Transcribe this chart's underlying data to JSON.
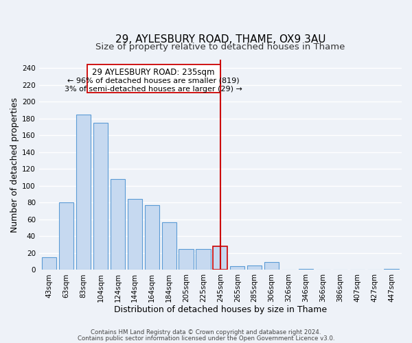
{
  "title": "29, AYLESBURY ROAD, THAME, OX9 3AU",
  "subtitle": "Size of property relative to detached houses in Thame",
  "xlabel": "Distribution of detached houses by size in Thame",
  "ylabel": "Number of detached properties",
  "bar_labels": [
    "43sqm",
    "63sqm",
    "83sqm",
    "104sqm",
    "124sqm",
    "144sqm",
    "164sqm",
    "184sqm",
    "205sqm",
    "225sqm",
    "245sqm",
    "265sqm",
    "285sqm",
    "306sqm",
    "326sqm",
    "346sqm",
    "366sqm",
    "386sqm",
    "407sqm",
    "427sqm",
    "447sqm"
  ],
  "bar_heights": [
    15,
    80,
    185,
    175,
    108,
    84,
    77,
    57,
    25,
    25,
    28,
    4,
    5,
    9,
    0,
    1,
    0,
    0,
    0,
    0,
    1
  ],
  "bar_color": "#c6d9f0",
  "bar_edge_color": "#5b9bd5",
  "highlight_bar_index": 10,
  "vline_color": "#cc0000",
  "annotation_title": "29 AYLESBURY ROAD: 235sqm",
  "annotation_line1": "← 96% of detached houses are smaller (819)",
  "annotation_line2": "3% of semi-detached houses are larger (29) →",
  "ylim": [
    0,
    250
  ],
  "yticks": [
    0,
    20,
    40,
    60,
    80,
    100,
    120,
    140,
    160,
    180,
    200,
    220,
    240
  ],
  "footnote1": "Contains HM Land Registry data © Crown copyright and database right 2024.",
  "footnote2": "Contains public sector information licensed under the Open Government Licence v3.0.",
  "bg_color": "#eef2f8",
  "grid_color": "#ffffff",
  "title_fontsize": 11,
  "subtitle_fontsize": 9.5,
  "tick_fontsize": 7.5,
  "label_fontsize": 9,
  "footnote_fontsize": 6.2
}
